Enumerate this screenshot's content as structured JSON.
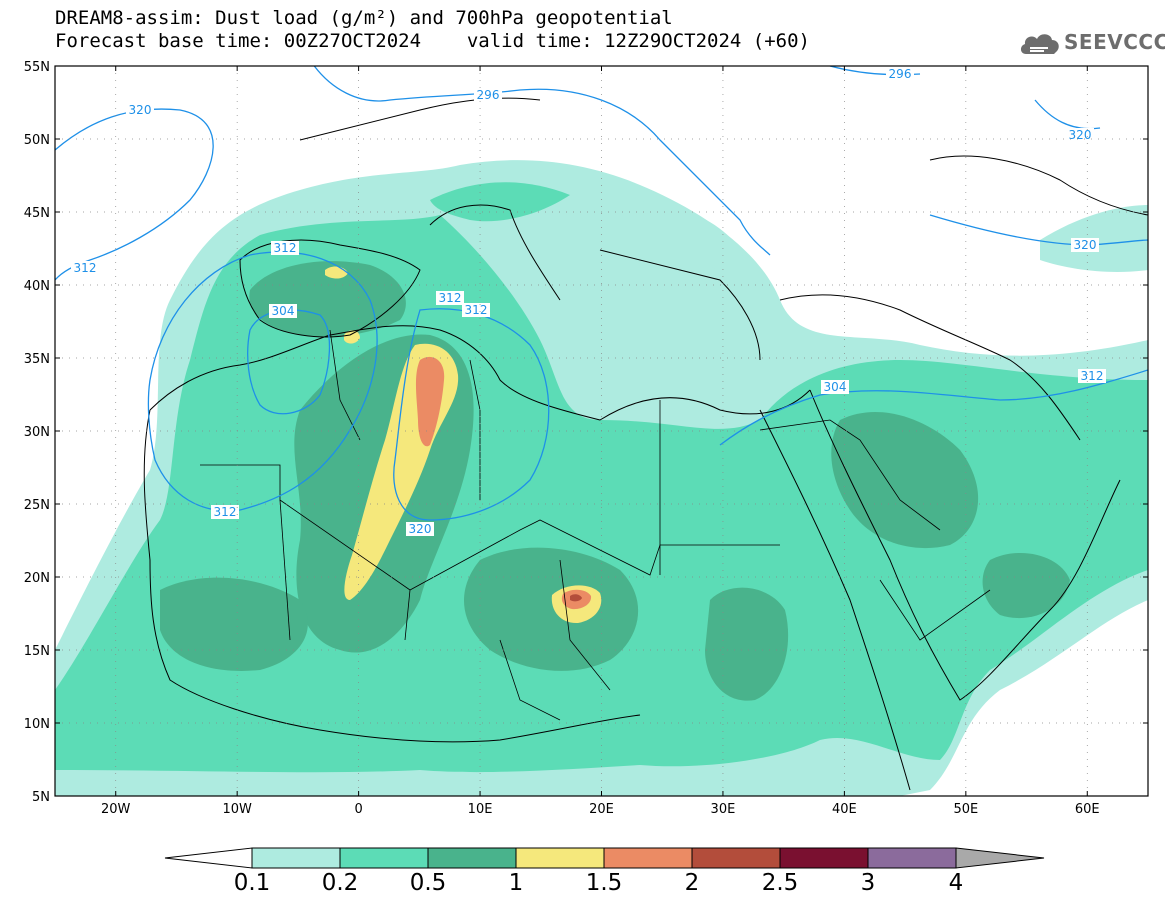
{
  "header": {
    "title_line1": "DREAM8-assim: Dust load (g/m²) and 700hPa geopotential",
    "base_time_label": "Forecast base time: 00Z27OCT2024",
    "valid_time_label": "valid time: 12Z29OCT2024 (+60)"
  },
  "logo": {
    "text": "SEEVCCC",
    "icon": "cloud-icon",
    "color": "#6d6d6d"
  },
  "map": {
    "region": "North Africa, Europe and Middle East",
    "lon_range": [
      -25,
      65
    ],
    "lat_range": [
      5,
      55
    ],
    "lat_labels": [
      "55N",
      "50N",
      "45N",
      "40N",
      "35N",
      "30N",
      "25N",
      "20N",
      "15N",
      "10N",
      "5N"
    ],
    "lon_labels": [
      "20W",
      "10W",
      "0",
      "10E",
      "20E",
      "30E",
      "40E",
      "50E",
      "60E"
    ],
    "contour_color": "#1e90e8",
    "contour_labels": [
      "320",
      "312",
      "296",
      "296",
      "320",
      "312",
      "304",
      "320",
      "312",
      "312",
      "304",
      "312",
      "320",
      "312"
    ]
  },
  "legend": {
    "title": "Dust load (g/m²)",
    "tick_labels": [
      "0.1",
      "0.2",
      "0.5",
      "1",
      "1.5",
      "2",
      "2.5",
      "3",
      "4"
    ],
    "colors": [
      "#ffffff",
      "#aeebe0",
      "#5cdcb6",
      "#49b38c",
      "#f5e87c",
      "#eb8b64",
      "#b34d3b",
      "#7a1030",
      "#8b6b9c",
      "#a9a9a9"
    ]
  }
}
